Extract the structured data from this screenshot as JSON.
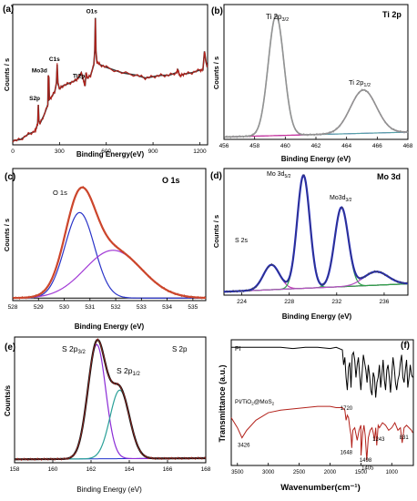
{
  "chart_data": [
    {
      "panel": "(a)",
      "type": "line",
      "xlabel": "Binding Energy(eV)",
      "ylabel": "Counts / s",
      "x_ticks": [
        "0",
        "300",
        "600",
        "900",
        "1200"
      ],
      "xlim": [
        0,
        1250
      ],
      "annotations": [
        {
          "label": "S2p",
          "x": 164
        },
        {
          "label": "Mo3d",
          "x": 230
        },
        {
          "label": "C1s",
          "x": 285
        },
        {
          "label": "Ti2p",
          "x": 459
        },
        {
          "label": "O1s",
          "x": 530
        }
      ],
      "colors": {
        "data": "#b3221b",
        "fit": "#3a3a3a"
      },
      "series": [
        {
          "x": [
            0,
            50,
            100,
            140,
            150,
            160,
            164,
            168,
            175,
            200,
            225,
            228,
            232,
            235,
            250,
            270,
            280,
            285,
            290,
            300,
            320,
            360,
            400,
            420,
            440,
            455,
            459,
            464,
            470,
            480,
            500,
            520,
            526,
            530,
            534,
            540,
            560,
            600,
            700,
            800,
            850,
            900,
            950,
            1000,
            1050,
            1060,
            1065,
            1070,
            1080,
            1100,
            1150,
            1200,
            1220,
            1230,
            1240,
            1248
          ],
          "y": [
            3,
            4,
            8,
            10,
            12,
            16,
            30,
            18,
            16,
            22,
            30,
            52,
            50,
            34,
            36,
            40,
            46,
            60,
            46,
            42,
            44,
            46,
            48,
            50,
            54,
            48,
            46,
            44,
            54,
            50,
            52,
            60,
            70,
            95,
            70,
            62,
            60,
            58,
            54,
            52,
            50,
            51,
            52,
            52,
            54,
            56,
            54,
            52,
            52,
            53,
            54,
            56,
            56,
            70,
            62,
            58
          ]
        }
      ]
    },
    {
      "panel": "(b)",
      "type": "line",
      "title": "Ti 2p",
      "xlabel": "Binding Energy (eV)",
      "ylabel": "Counts / s",
      "x_ticks": [
        "456",
        "458",
        "460",
        "462",
        "464",
        "466",
        "468"
      ],
      "xlim": [
        456,
        468
      ],
      "annotations": [
        {
          "label": "Ti 2p3/2",
          "main": "Ti 2p",
          "sub": "3/2",
          "x": 459.4
        },
        {
          "label": "Ti 2p1/2",
          "main": "Ti 2p",
          "sub": "1/2",
          "x": 465.1
        }
      ],
      "peaks": [
        {
          "center": 459.4,
          "fwhm": 1.2,
          "height": 100,
          "color": "#56a0a8"
        },
        {
          "center": 465.1,
          "fwhm": 2.0,
          "height": 36,
          "color": "#c8309a"
        }
      ],
      "baseline": {
        "start": 2,
        "end": 6,
        "color": "#6d2bc0"
      },
      "envelope_color": "#8a8a8a"
    },
    {
      "panel": "(c)",
      "type": "line",
      "title": "O 1s",
      "xlabel": "Binding Energy (eV)",
      "ylabel": "Counts / s",
      "x_ticks": [
        "528",
        "529",
        "530",
        "531",
        "532",
        "533",
        "534",
        "535"
      ],
      "xlim": [
        528,
        535.5
      ],
      "annotations": [
        {
          "label": "O 1s",
          "x": 530.6
        }
      ],
      "peaks": [
        {
          "center": 530.6,
          "fwhm": 1.35,
          "height": 68,
          "color": "#2a34c8"
        },
        {
          "center": 531.9,
          "fwhm": 2.6,
          "height": 38,
          "color": "#a23bd6"
        }
      ],
      "baseline": {
        "start": 2,
        "end": 2,
        "color": "#000000"
      },
      "envelope_color": "#d13b22"
    },
    {
      "panel": "(d)",
      "type": "line",
      "title": "Mo 3d",
      "xlabel": "Binding Energy (eV)",
      "ylabel": "Counts / s",
      "x_ticks": [
        "224",
        "228",
        "232",
        "236"
      ],
      "xlim": [
        222.5,
        238
      ],
      "annotations": [
        {
          "label": "S 2s",
          "x": 226.5
        },
        {
          "label": "Mo 3d5/2",
          "main": "Mo 3d",
          "sub": "5/2",
          "x": 229.2
        },
        {
          "label": "Mo3d3/2",
          "main": "Mo3d",
          "sub": "3/2",
          "x": 232.4
        }
      ],
      "peaks": [
        {
          "center": 226.5,
          "fwhm": 1.6,
          "height": 22,
          "color": "#c23bb5"
        },
        {
          "center": 229.2,
          "fwhm": 1.25,
          "height": 100,
          "color": "#2f9e4a"
        },
        {
          "center": 232.4,
          "fwhm": 1.35,
          "height": 70,
          "color": "#2f9e4a"
        },
        {
          "center": 235.3,
          "fwhm": 2.4,
          "height": 12,
          "color": "#b34fc0"
        }
      ],
      "baseline": {
        "start": 3,
        "end": 10,
        "color": "#000000"
      },
      "envelope_color": "#1f26c9"
    },
    {
      "panel": "(e)",
      "type": "line",
      "title": "S 2p",
      "xlabel": "Binding Energy (eV)",
      "ylabel": "Counts/s",
      "x_ticks": [
        "158",
        "160",
        "162",
        "164",
        "166",
        "168"
      ],
      "xlim": [
        158,
        168
      ],
      "annotations": [
        {
          "label": "S 2p3/2",
          "main": "S 2p",
          "sub": "3/2",
          "x": 162.3
        },
        {
          "label": "S 2p1/2",
          "main": "S 2p",
          "sub": "1/2",
          "x": 163.5
        }
      ],
      "peaks": [
        {
          "center": 162.3,
          "fwhm": 1.1,
          "height": 100,
          "color": "#8a2bd6"
        },
        {
          "center": 163.5,
          "fwhm": 1.2,
          "height": 60,
          "color": "#2aa098"
        }
      ],
      "baseline": {
        "start": 3,
        "end": 4,
        "color": "#2233cc"
      },
      "envelope_color": "#1a1a1a"
    },
    {
      "panel": "(f)",
      "type": "line",
      "xlabel": "Wavenumber(cm⁻¹)",
      "ylabel": "Transmittance (a.u.)",
      "x_ticks": [
        "3500",
        "3000",
        "2500",
        "2000",
        "1500",
        "1000"
      ],
      "xlim": [
        3600,
        650
      ],
      "series": [
        {
          "name": "PI",
          "color": "#000000",
          "x": [
            3600,
            3400,
            3200,
            3000,
            2800,
            2600,
            2400,
            2200,
            2000,
            1900,
            1800,
            1780,
            1760,
            1740,
            1720,
            1700,
            1680,
            1660,
            1640,
            1620,
            1600,
            1580,
            1560,
            1540,
            1520,
            1500,
            1480,
            1460,
            1440,
            1420,
            1400,
            1380,
            1360,
            1340,
            1320,
            1300,
            1280,
            1260,
            1240,
            1220,
            1200,
            1180,
            1160,
            1140,
            1120,
            1100,
            1080,
            1060,
            1040,
            1020,
            1000,
            980,
            960,
            940,
            920,
            900,
            880,
            860,
            840,
            820,
            800,
            780,
            760,
            740,
            720,
            700,
            680,
            660
          ],
          "y": [
            94,
            94,
            94,
            94,
            94,
            93,
            94,
            94,
            93,
            94,
            92,
            80,
            86,
            70,
            60,
            78,
            82,
            62,
            88,
            90,
            84,
            70,
            80,
            86,
            72,
            60,
            74,
            88,
            82,
            76,
            66,
            80,
            72,
            60,
            56,
            74,
            70,
            54,
            66,
            70,
            80,
            62,
            72,
            84,
            68,
            60,
            76,
            80,
            70,
            58,
            72,
            86,
            78,
            66,
            60,
            68,
            72,
            82,
            88,
            70,
            66,
            76,
            84,
            62,
            70,
            80,
            72,
            70
          ]
        },
        {
          "name": "PI/TiO₂@MoS₂",
          "color": "#b3221b",
          "x": [
            3600,
            3500,
            3426,
            3350,
            3200,
            3000,
            2800,
            2600,
            2400,
            2200,
            2000,
            1900,
            1800,
            1760,
            1740,
            1720,
            1700,
            1680,
            1660,
            1648,
            1630,
            1600,
            1560,
            1530,
            1500,
            1498,
            1470,
            1450,
            1430,
            1405,
            1380,
            1350,
            1320,
            1300,
            1280,
            1260,
            1243,
            1220,
            1200,
            1150,
            1100,
            1050,
            1000,
            950,
            900,
            860,
            831,
            800,
            760,
            720,
            680,
            660
          ],
          "y": [
            38,
            30,
            22,
            28,
            36,
            42,
            44,
            45,
            46,
            47,
            47,
            46,
            46,
            44,
            36,
            40,
            38,
            30,
            24,
            14,
            28,
            30,
            20,
            28,
            32,
            8,
            26,
            32,
            24,
            4,
            22,
            28,
            30,
            26,
            20,
            30,
            16,
            32,
            30,
            34,
            32,
            28,
            30,
            34,
            28,
            30,
            18,
            30,
            32,
            30,
            28,
            26
          ]
        }
      ],
      "annotations": [
        {
          "label": "3426",
          "x": 3426
        },
        {
          "label": "1720",
          "x": 1720
        },
        {
          "label": "1648",
          "x": 1648
        },
        {
          "label": "1498",
          "x": 1498
        },
        {
          "label": "1405",
          "x": 1405
        },
        {
          "label": "1243",
          "x": 1243
        },
        {
          "label": "831",
          "x": 831
        }
      ],
      "legend_labels": {
        "pi": "PI",
        "composite_main": "PI/TiO",
        "composite_sub1": "2",
        "composite_mid": "@MoS",
        "composite_sub2": "2"
      }
    }
  ]
}
